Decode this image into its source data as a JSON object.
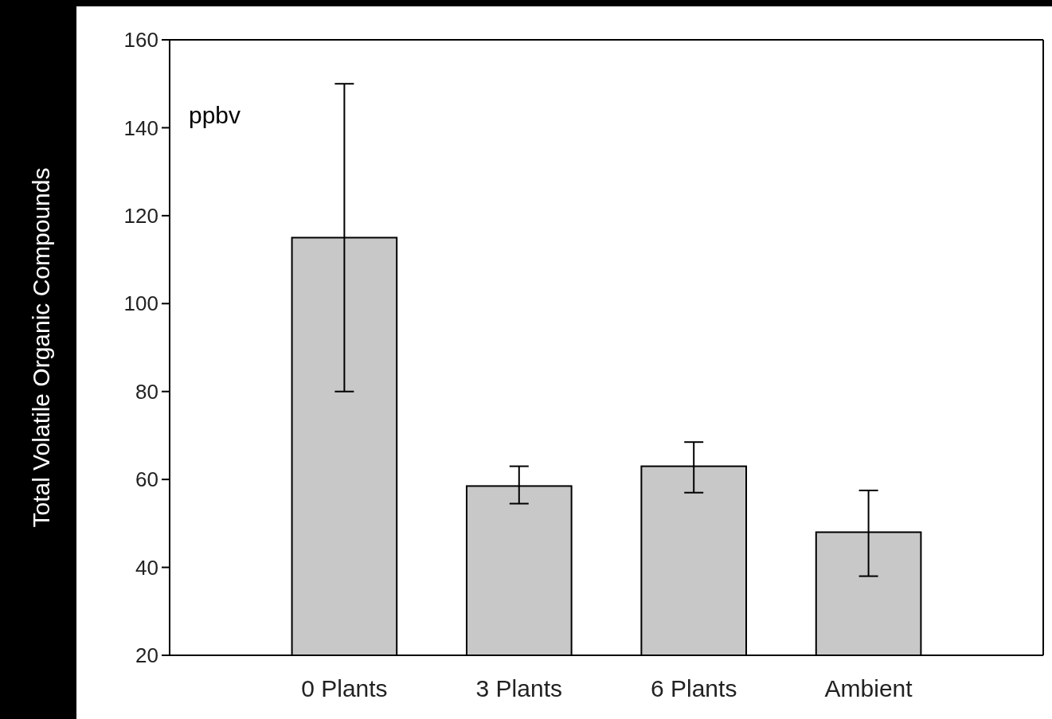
{
  "chart_data": {
    "type": "bar",
    "ylabel": "Total Volatile Organic Compounds",
    "categories": [
      "0 Plants",
      "3 Plants",
      "6 Plants",
      "Ambient"
    ],
    "values": [
      115,
      58.5,
      63,
      48
    ],
    "errors": [
      [
        80,
        150
      ],
      [
        54.5,
        63
      ],
      [
        57,
        68.5
      ],
      [
        38,
        57.5
      ]
    ],
    "color": "#c8c8c8",
    "ylim": [
      20,
      160
    ],
    "yticks": [
      20,
      40,
      60,
      80,
      100,
      120,
      140,
      160
    ],
    "annotations": [
      "ppbv"
    ],
    "grid": false
  }
}
